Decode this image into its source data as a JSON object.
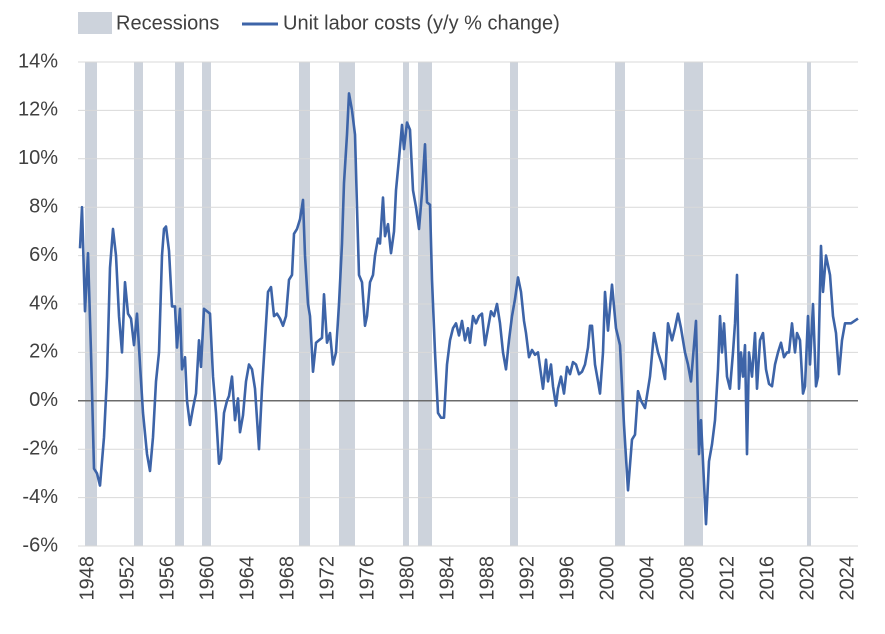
{
  "chart_data": {
    "type": "line",
    "recessions": {
      "name": "Recessions",
      "color": "#cdd3dc",
      "periods": [
        [
          1948.5,
          1949.7
        ],
        [
          1953.4,
          1954.3
        ],
        [
          1957.5,
          1958.4
        ],
        [
          1960.2,
          1961.1
        ],
        [
          1969.9,
          1971.0
        ],
        [
          1973.9,
          1975.5
        ],
        [
          1980.3,
          1980.9
        ],
        [
          1981.8,
          1983.2
        ],
        [
          1991.0,
          1991.8
        ],
        [
          2001.5,
          2002.5
        ],
        [
          2008.4,
          2010.3
        ],
        [
          2020.7,
          2021.1
        ]
      ]
    },
    "x": [
      1948.0,
      1948.2,
      1948.5,
      1948.8,
      1949.1,
      1949.4,
      1949.7,
      1950.0,
      1950.4,
      1950.7,
      1951.0,
      1951.3,
      1951.6,
      1951.9,
      1952.2,
      1952.5,
      1952.8,
      1953.1,
      1953.4,
      1953.7,
      1954.0,
      1954.3,
      1954.7,
      1955.0,
      1955.3,
      1955.6,
      1955.9,
      1956.2,
      1956.4,
      1956.6,
      1956.9,
      1957.2,
      1957.5,
      1957.7,
      1958.0,
      1958.2,
      1958.5,
      1958.7,
      1959.0,
      1959.3,
      1959.6,
      1959.9,
      1960.1,
      1960.4,
      1960.7,
      1961.0,
      1961.3,
      1961.6,
      1961.9,
      1962.1,
      1962.4,
      1962.7,
      1962.9,
      1963.2,
      1963.5,
      1963.8,
      1964.0,
      1964.3,
      1964.6,
      1964.9,
      1965.2,
      1965.5,
      1965.9,
      1966.2,
      1966.5,
      1966.8,
      1967.1,
      1967.4,
      1967.7,
      1968.0,
      1968.3,
      1968.6,
      1968.9,
      1969.2,
      1969.4,
      1969.7,
      1970.0,
      1970.3,
      1970.5,
      1970.8,
      1971.0,
      1971.3,
      1971.6,
      1971.9,
      1972.2,
      1972.4,
      1972.7,
      1973.0,
      1973.3,
      1973.6,
      1973.9,
      1974.2,
      1974.4,
      1974.7,
      1974.9,
      1975.2,
      1975.5,
      1975.7,
      1975.9,
      1976.2,
      1976.5,
      1976.7,
      1977.0,
      1977.3,
      1977.5,
      1977.8,
      1978.0,
      1978.3,
      1978.5,
      1978.8,
      1979.1,
      1979.4,
      1979.6,
      1979.9,
      1980.2,
      1980.4,
      1980.7,
      1981.0,
      1981.3,
      1981.6,
      1981.9,
      1982.2,
      1982.5,
      1982.7,
      1983.0,
      1983.2,
      1983.5,
      1983.8,
      1984.1,
      1984.4,
      1984.7,
      1985.0,
      1985.3,
      1985.6,
      1985.9,
      1986.2,
      1986.5,
      1986.8,
      1987.0,
      1987.3,
      1987.6,
      1987.9,
      1988.2,
      1988.5,
      1988.8,
      1989.1,
      1989.4,
      1989.7,
      1990.0,
      1990.3,
      1990.6,
      1990.9,
      1991.2,
      1991.5,
      1991.8,
      1992.1,
      1992.4,
      1992.6,
      1992.9,
      1993.2,
      1993.5,
      1993.8,
      1994.0,
      1994.3,
      1994.6,
      1994.8,
      1995.1,
      1995.3,
      1995.6,
      1995.8,
      1996.1,
      1996.4,
      1996.7,
      1997.0,
      1997.3,
      1997.6,
      1997.9,
      1998.2,
      1998.5,
      1998.8,
      1999.0,
      1999.2,
      1999.5,
      1999.8,
      2000.0,
      2000.3,
      2000.5,
      2000.8,
      2001.2,
      2001.6,
      2002.0,
      2002.4,
      2002.8,
      2003.2,
      2003.5,
      2003.8,
      2004.1,
      2004.5,
      2005.0,
      2005.4,
      2005.8,
      2006.2,
      2006.5,
      2006.8,
      2007.2,
      2007.5,
      2007.8,
      2008.1,
      2008.5,
      2008.8,
      2009.1,
      2009.6,
      2009.9,
      2010.1,
      2010.6,
      2010.9,
      2011.2,
      2011.5,
      2011.8,
      2012.0,
      2012.2,
      2012.4,
      2012.7,
      2013.0,
      2013.3,
      2013.5,
      2013.7,
      2013.9,
      2014.1,
      2014.3,
      2014.5,
      2014.7,
      2014.9,
      2015.2,
      2015.5,
      2015.7,
      2016.0,
      2016.3,
      2016.6,
      2016.9,
      2017.2,
      2017.5,
      2017.8,
      2018.1,
      2018.4,
      2018.7,
      2018.9,
      2019.2,
      2019.5,
      2019.7,
      2020.0,
      2020.3,
      2020.5,
      2020.8,
      2021.0,
      2021.3,
      2021.6,
      2021.8,
      2022.1,
      2022.3,
      2022.6,
      2023.0,
      2023.3,
      2023.6,
      2023.9,
      2024.2,
      2024.5,
      2025.1,
      2025.8
    ],
    "series": [
      {
        "name": "Unit labor costs (y/y % change)",
        "color": "#3d64a8",
        "values": [
          6.3,
          8.0,
          3.7,
          6.1,
          2.0,
          -2.8,
          -3.0,
          -3.5,
          -1.5,
          1.0,
          5.5,
          7.1,
          6.0,
          3.5,
          2.0,
          4.9,
          3.6,
          3.4,
          2.3,
          3.6,
          1.5,
          -0.5,
          -2.2,
          -2.9,
          -1.5,
          0.8,
          2.0,
          6.0,
          7.1,
          7.2,
          6.2,
          3.9,
          3.9,
          2.2,
          3.8,
          1.3,
          1.8,
          0.0,
          -1.0,
          -0.3,
          0.3,
          2.5,
          1.4,
          3.8,
          3.7,
          3.6,
          1.0,
          -0.5,
          -2.6,
          -2.4,
          -0.5,
          0.0,
          0.2,
          1.0,
          -0.8,
          0.1,
          -1.3,
          -0.6,
          0.8,
          1.5,
          1.3,
          0.5,
          -2.0,
          0.5,
          2.5,
          4.5,
          4.7,
          3.5,
          3.6,
          3.4,
          3.1,
          3.5,
          5.0,
          5.2,
          6.9,
          7.1,
          7.5,
          8.3,
          6.0,
          4.0,
          3.5,
          1.2,
          2.4,
          2.5,
          2.6,
          4.4,
          2.4,
          2.8,
          1.5,
          2.0,
          4.0,
          6.5,
          9.0,
          11.0,
          12.7,
          12.0,
          11.0,
          8.0,
          5.2,
          4.9,
          3.1,
          3.5,
          4.9,
          5.2,
          6.0,
          6.7,
          6.5,
          8.4,
          6.8,
          7.3,
          6.1,
          7.0,
          8.7,
          10.0,
          11.4,
          10.4,
          11.5,
          11.2,
          8.7,
          8.0,
          7.1,
          8.6,
          10.6,
          8.2,
          8.1,
          5.0,
          2.0,
          -0.5,
          -0.7,
          -0.7,
          1.5,
          2.5,
          3.0,
          3.2,
          2.7,
          3.3,
          2.5,
          3.0,
          2.4,
          3.5,
          3.2,
          3.5,
          3.6,
          2.3,
          3.0,
          3.7,
          3.5,
          4.0,
          3.2,
          2.0,
          1.3,
          2.5,
          3.5,
          4.2,
          5.1,
          4.5,
          3.3,
          2.8,
          1.8,
          2.1,
          1.9,
          2.0,
          1.4,
          0.5,
          1.7,
          0.8,
          1.5,
          0.6,
          -0.2,
          0.5,
          1.0,
          0.3,
          1.4,
          1.1,
          1.6,
          1.5,
          1.1,
          1.2,
          1.5,
          2.2,
          3.1,
          3.1,
          1.5,
          0.8,
          0.3,
          2.0,
          4.5,
          2.9,
          4.8,
          3.0,
          2.3,
          -1.0,
          -3.7,
          -1.6,
          -1.4,
          0.4,
          0.0,
          -0.3,
          1.0,
          2.8,
          2.0,
          1.5,
          0.9,
          3.2,
          2.5,
          3.0,
          3.6,
          3.0,
          2.0,
          1.5,
          0.8,
          3.3,
          -2.2,
          -0.8,
          -5.1,
          -2.5,
          -1.8,
          -0.8,
          1.3,
          3.5,
          2.0,
          3.2,
          1.0,
          0.5,
          2.0,
          3.2,
          5.2,
          0.5,
          2.0,
          1.0,
          2.3,
          -2.2,
          2.0,
          1.0,
          2.8,
          0.5,
          2.5,
          2.8,
          1.3,
          0.7,
          0.6,
          1.5,
          2.0,
          2.4,
          1.8,
          2.0,
          2.0,
          3.2,
          2.0,
          2.8,
          2.5,
          0.3,
          0.6,
          3.5,
          1.5,
          4.0,
          0.6,
          1.0,
          6.4,
          4.5,
          6.0,
          5.2,
          3.5,
          2.8,
          1.1,
          2.5,
          3.2,
          3.2,
          3.4
        ]
      }
    ],
    "xlim": [
      1947.8,
      2025.8
    ],
    "xticks": [
      1948,
      1952,
      1956,
      1960,
      1964,
      1968,
      1972,
      1976,
      1980,
      1984,
      1988,
      1992,
      1996,
      2000,
      2004,
      2008,
      2012,
      2016,
      2020,
      2024
    ],
    "ylim": [
      -6,
      14
    ],
    "yticks": [
      {
        "value": -6,
        "label": "-6%"
      },
      {
        "value": -4,
        "label": "-4%"
      },
      {
        "value": -2,
        "label": "-2%"
      },
      {
        "value": 0,
        "label": "0%"
      },
      {
        "value": 2,
        "label": "2%"
      },
      {
        "value": 4,
        "label": "4%"
      },
      {
        "value": 6,
        "label": "6%"
      },
      {
        "value": 8,
        "label": "8%"
      },
      {
        "value": 10,
        "label": "10%"
      },
      {
        "value": 12,
        "label": "12%"
      },
      {
        "value": 14,
        "label": "14%"
      }
    ],
    "grid": true
  }
}
